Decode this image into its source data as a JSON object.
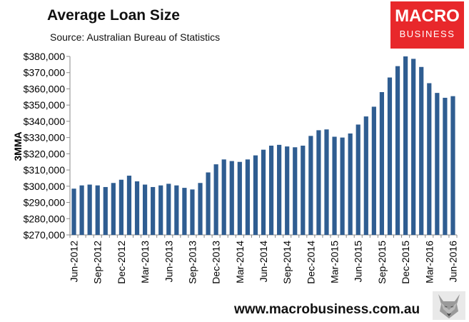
{
  "header": {
    "title": "Average Loan Size",
    "subtitle": "Source: Australian Bureau of Statistics"
  },
  "logo": {
    "line1": "MACRO",
    "line2": "BUSINESS",
    "color": "#e8282b"
  },
  "footer": {
    "url": "www.macrobusiness.com.au",
    "icon": "wolf-icon"
  },
  "chart_data": {
    "type": "bar",
    "title": "Average Loan Size",
    "subtitle": "Source: Australian Bureau of Statistics",
    "ylabel": "3MMA",
    "xlabel": "",
    "ylim": [
      270000,
      380000
    ],
    "ytick_step": 10000,
    "bar_color": "#2f5d91",
    "grid": false,
    "categories": [
      "Jun-2012",
      "Jul-2012",
      "Aug-2012",
      "Sep-2012",
      "Oct-2012",
      "Nov-2012",
      "Dec-2012",
      "Jan-2013",
      "Feb-2013",
      "Mar-2013",
      "Apr-2013",
      "May-2013",
      "Jun-2013",
      "Jul-2013",
      "Aug-2013",
      "Sep-2013",
      "Oct-2013",
      "Nov-2013",
      "Dec-2013",
      "Jan-2014",
      "Feb-2014",
      "Mar-2014",
      "Apr-2014",
      "May-2014",
      "Jun-2014",
      "Jul-2014",
      "Aug-2014",
      "Sep-2014",
      "Oct-2014",
      "Nov-2014",
      "Dec-2014",
      "Jan-2015",
      "Feb-2015",
      "Mar-2015",
      "Apr-2015",
      "May-2015",
      "Jun-2015",
      "Jul-2015",
      "Aug-2015",
      "Sep-2015",
      "Oct-2015",
      "Nov-2015",
      "Dec-2015",
      "Jan-2016",
      "Feb-2016",
      "Mar-2016",
      "Apr-2016",
      "May-2016",
      "Jun-2016"
    ],
    "tick_labels": [
      "Jun-2012",
      "Sep-2012",
      "Dec-2012",
      "Mar-2013",
      "Jun-2013",
      "Sep-2013",
      "Dec-2013",
      "Mar-2014",
      "Jun-2014",
      "Sep-2014",
      "Dec-2014",
      "Mar-2015",
      "Jun-2015",
      "Sep-2015",
      "Dec-2015",
      "Mar-2016",
      "Jun-2016"
    ],
    "values": [
      298500,
      300500,
      301000,
      300500,
      299500,
      302000,
      304000,
      306500,
      303000,
      301000,
      299500,
      300500,
      301500,
      300500,
      299000,
      298000,
      302000,
      308500,
      313500,
      316500,
      315500,
      315000,
      316500,
      319000,
      322500,
      325000,
      325500,
      324500,
      324000,
      325000,
      331000,
      334500,
      335000,
      330500,
      330000,
      332500,
      338000,
      343000,
      349000,
      358000,
      367000,
      374000,
      380000,
      378500,
      373500,
      363500,
      357500,
      354500,
      355500
    ]
  }
}
